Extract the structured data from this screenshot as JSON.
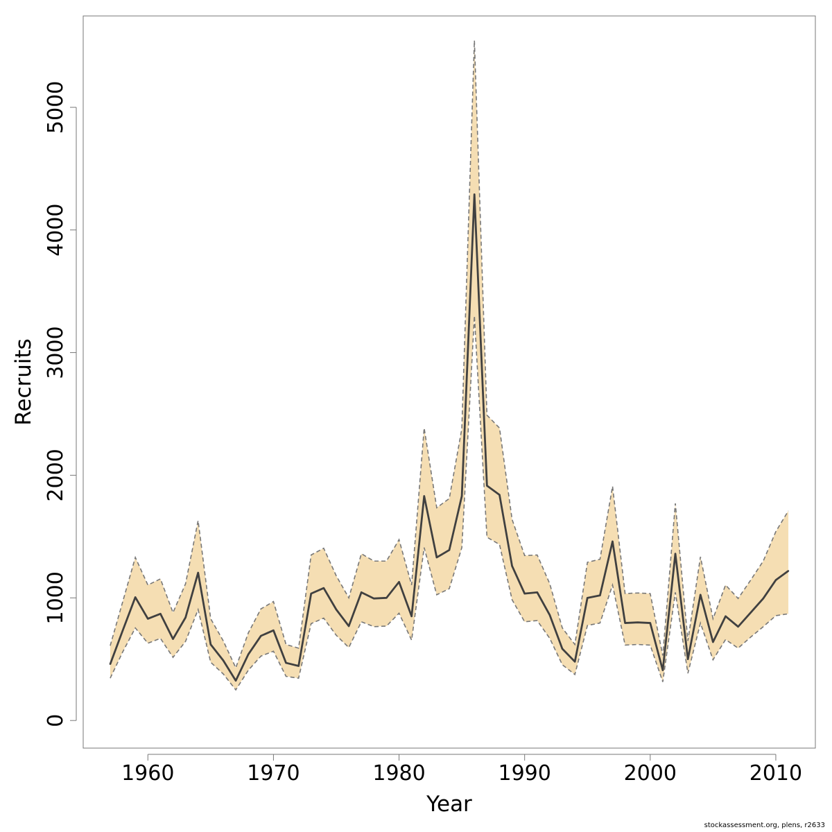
{
  "chart_data": {
    "type": "line",
    "xlabel": "Year",
    "ylabel": "Recruits",
    "xlim": [
      1954.6,
      1913.4
    ],
    "ylim": [
      -225,
      5745
    ],
    "x_ticks": [
      1960,
      1970,
      1980,
      1990,
      2000,
      2010
    ],
    "y_ticks": [
      0,
      1000,
      2000,
      3000,
      4000,
      5000
    ],
    "grid": false,
    "band_color": "#f5deb3",
    "band_line_color": "#777777",
    "line_color": "#404040",
    "x": [
      1957,
      1958,
      1959,
      1960,
      1961,
      1962,
      1963,
      1964,
      1965,
      1966,
      1967,
      1968,
      1969,
      1970,
      1971,
      1972,
      1973,
      1974,
      1975,
      1976,
      1977,
      1978,
      1979,
      1980,
      1981,
      1982,
      1983,
      1984,
      1985,
      1986,
      1987,
      1988,
      1989,
      1990,
      1991,
      1992,
      1993,
      1994,
      1995,
      1996,
      1997,
      1998,
      1999,
      2000,
      2001,
      2002,
      2003,
      2004,
      2005,
      2006,
      2007,
      2008,
      2009,
      2010,
      2011
    ],
    "series": [
      {
        "values": [
          460,
          735,
          1005,
          830,
          870,
          665,
          840,
          1205,
          620,
          490,
          325,
          540,
          690,
          735,
          470,
          445,
          1035,
          1080,
          905,
          770,
          1045,
          995,
          1000,
          1130,
          850,
          1830,
          1330,
          1390,
          1830,
          4290,
          1915,
          1840,
          1260,
          1035,
          1045,
          860,
          585,
          480,
          1000,
          1020,
          1460,
          795,
          800,
          795,
          410,
          1360,
          500,
          1025,
          640,
          850,
          765,
          880,
          995,
          1145,
          1220
        ]
      }
    ],
    "lower": [
      345,
      560,
      755,
      630,
      670,
      515,
      645,
      905,
      475,
      380,
      250,
      410,
      525,
      565,
      360,
      345,
      790,
      835,
      695,
      595,
      805,
      765,
      770,
      875,
      655,
      1410,
      1025,
      1075,
      1410,
      3300,
      1495,
      1435,
      985,
      805,
      815,
      670,
      455,
      375,
      775,
      795,
      1105,
      615,
      620,
      615,
      315,
      1045,
      385,
      795,
      495,
      660,
      590,
      680,
      765,
      855,
      870
    ],
    "upper": [
      610,
      970,
      1330,
      1105,
      1155,
      880,
      1115,
      1630,
      830,
      650,
      430,
      715,
      910,
      970,
      620,
      590,
      1350,
      1405,
      1180,
      1000,
      1360,
      1300,
      1300,
      1475,
      1105,
      2385,
      1735,
      1810,
      2380,
      5545,
      2490,
      2385,
      1640,
      1345,
      1350,
      1115,
      755,
      620,
      1290,
      1315,
      1910,
      1035,
      1040,
      1035,
      530,
      1770,
      650,
      1335,
      830,
      1105,
      995,
      1145,
      1300,
      1540,
      1710
    ]
  },
  "footer_text": "stockassessment.org, plens, r2633"
}
